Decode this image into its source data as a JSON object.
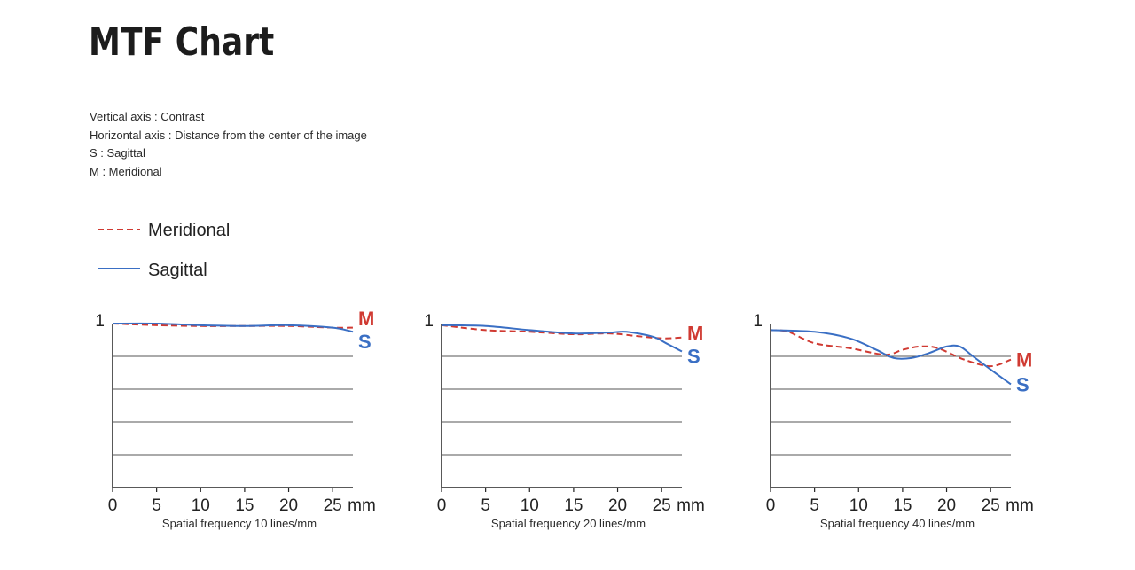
{
  "page": {
    "title": "MTF Chart",
    "description": [
      "Vertical axis : Contrast",
      "Horizontal axis : Distance from the center of the image",
      "S : Sagittal",
      "M : Meridional"
    ]
  },
  "legend": [
    {
      "label": "Meridional",
      "style": "dashed",
      "color": "#d03a32"
    },
    {
      "label": "Sagittal",
      "style": "solid",
      "color": "#3a6fc4"
    }
  ],
  "colors": {
    "meridional": "#d03a32",
    "sagittal": "#3a6fc4",
    "axis": "#222222",
    "grid": "#555555"
  },
  "chart_data": [
    {
      "type": "line",
      "xlabel": "Spatial frequency 10 lines/mm",
      "x_ticks": [
        "0",
        "5",
        "10",
        "15",
        "20",
        "25"
      ],
      "x_unit": "mm",
      "xlim": [
        0,
        27.3
      ],
      "ylim": [
        0,
        1
      ],
      "y_tick_label": "1",
      "grid": "horizontal",
      "series": [
        {
          "key": "meridional",
          "end_label": "M",
          "style": "dashed",
          "x": [
            0,
            5,
            10,
            15,
            20,
            25,
            27.3
          ],
          "y": [
            1.0,
            0.99,
            0.985,
            0.985,
            0.985,
            0.975,
            0.975
          ]
        },
        {
          "key": "sagittal",
          "end_label": "S",
          "style": "solid",
          "x": [
            0,
            5,
            10,
            15,
            20,
            25,
            27.3
          ],
          "y": [
            1.0,
            1.0,
            0.99,
            0.985,
            0.99,
            0.975,
            0.95
          ]
        }
      ]
    },
    {
      "type": "line",
      "xlabel": "Spatial frequency 20 lines/mm",
      "x_ticks": [
        "0",
        "5",
        "10",
        "15",
        "20",
        "25"
      ],
      "x_unit": "mm",
      "xlim": [
        0,
        27.3
      ],
      "ylim": [
        0,
        1
      ],
      "y_tick_label": "1",
      "grid": "horizontal",
      "series": [
        {
          "key": "meridional",
          "end_label": "M",
          "style": "dashed",
          "x": [
            0,
            5,
            10,
            15,
            19,
            22,
            25,
            27.3
          ],
          "y": [
            0.99,
            0.96,
            0.95,
            0.935,
            0.94,
            0.925,
            0.91,
            0.915
          ]
        },
        {
          "key": "sagittal",
          "end_label": "S",
          "style": "solid",
          "x": [
            0,
            5,
            10,
            15,
            19,
            21,
            24,
            25.5,
            27.3
          ],
          "y": [
            0.99,
            0.985,
            0.96,
            0.94,
            0.945,
            0.95,
            0.92,
            0.88,
            0.83
          ]
        }
      ]
    },
    {
      "type": "line",
      "xlabel": "Spatial frequency 40 lines/mm",
      "x_ticks": [
        "0",
        "5",
        "10",
        "15",
        "20",
        "25"
      ],
      "x_unit": "mm",
      "xlim": [
        0,
        27.3
      ],
      "ylim": [
        0,
        1
      ],
      "y_tick_label": "1",
      "grid": "horizontal",
      "series": [
        {
          "key": "meridional",
          "end_label": "M",
          "style": "dashed",
          "x": [
            0,
            2,
            5,
            9,
            13,
            15,
            17,
            19,
            22,
            25,
            27.3
          ],
          "y": [
            0.96,
            0.95,
            0.88,
            0.85,
            0.81,
            0.84,
            0.86,
            0.85,
            0.78,
            0.74,
            0.78
          ]
        },
        {
          "key": "sagittal",
          "end_label": "S",
          "style": "solid",
          "x": [
            0,
            5,
            9,
            12,
            14,
            16,
            18,
            20,
            21.5,
            23,
            25,
            27.3
          ],
          "y": [
            0.96,
            0.95,
            0.91,
            0.84,
            0.79,
            0.79,
            0.82,
            0.86,
            0.86,
            0.8,
            0.72,
            0.63
          ]
        }
      ]
    }
  ]
}
